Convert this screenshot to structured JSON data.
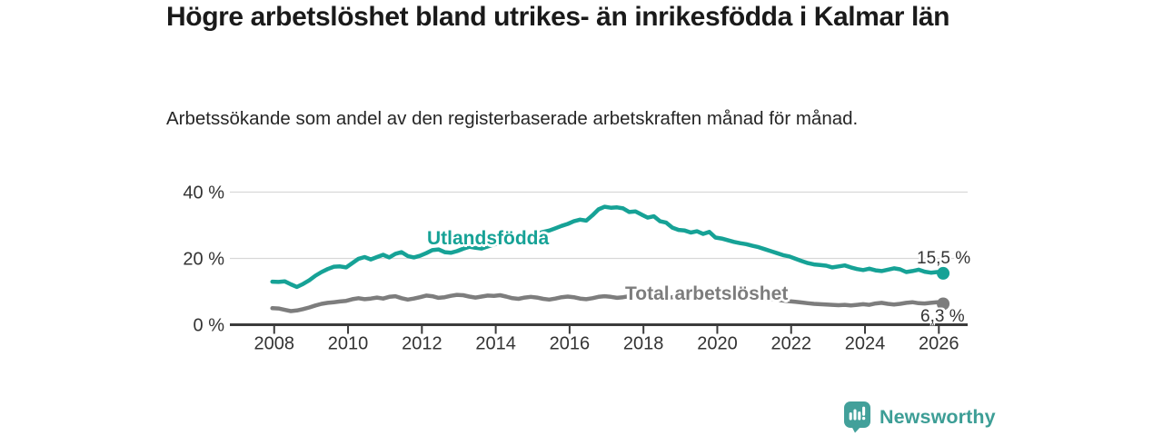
{
  "footer": {
    "brand": "Newsworthy"
  },
  "colors": {
    "teal": "#16a296",
    "gray": "#7d7d7d",
    "grid": "#d8d8d8",
    "axis": "#3b3b3b",
    "tick_text": "#333333",
    "brand": "#3d9e96"
  },
  "chart_data": {
    "type": "line",
    "title": "Högre arbetslöshet bland utrikes- än inrikesfödda i Kalmar län",
    "subtitle": "Arbetssökande som andel av den registerbaserade arbetskraften månad för månad.",
    "xlim": [
      2006.8,
      2026.78
    ],
    "ylim": [
      0,
      40
    ],
    "grid": "horizontal",
    "legend_position": "inline-labels",
    "x_ticks": [
      {
        "v": 2008,
        "label": "2008"
      },
      {
        "v": 2010,
        "label": "2010"
      },
      {
        "v": 2012,
        "label": "2012"
      },
      {
        "v": 2014,
        "label": "2014"
      },
      {
        "v": 2016,
        "label": "2016"
      },
      {
        "v": 2018,
        "label": "2018"
      },
      {
        "v": 2020,
        "label": "2020"
      },
      {
        "v": 2022,
        "label": "2022"
      },
      {
        "v": 2024,
        "label": "2024"
      },
      {
        "v": 2026,
        "label": "2026"
      }
    ],
    "y_ticks": [
      {
        "v": 0,
        "label": "0 %"
      },
      {
        "v": 20,
        "label": "20 %"
      },
      {
        "v": 40,
        "label": "40 %"
      }
    ],
    "series": [
      {
        "name": "Utlandsfödda",
        "color_key": "teal",
        "end_label": "15,5 %",
        "end_value": 15.5,
        "start": 2007.95,
        "step": 0.16667,
        "values": [
          13.0,
          12.9,
          13.1,
          12.2,
          11.4,
          12.3,
          13.4,
          14.8,
          15.9,
          16.8,
          17.5,
          17.6,
          17.3,
          18.6,
          19.9,
          20.4,
          19.7,
          20.4,
          21.1,
          20.3,
          21.4,
          21.9,
          20.7,
          20.3,
          20.8,
          21.6,
          22.5,
          22.7,
          21.9,
          21.7,
          22.2,
          22.9,
          23.5,
          23.2,
          23.0,
          23.6,
          24.2,
          24.8,
          25.4,
          25.1,
          25.6,
          26.2,
          26.8,
          27.4,
          28.0,
          28.4,
          29.1,
          29.8,
          30.4,
          31.2,
          31.7,
          31.4,
          33.0,
          34.8,
          35.6,
          35.3,
          35.4,
          35.1,
          34.0,
          34.2,
          33.2,
          32.3,
          32.7,
          31.2,
          30.8,
          29.3,
          28.6,
          28.4,
          27.8,
          28.2,
          27.4,
          28.0,
          26.3,
          26.0,
          25.5,
          25.0,
          24.6,
          24.3,
          23.8,
          23.4,
          22.8,
          22.2,
          21.6,
          21.0,
          20.6,
          19.9,
          19.2,
          18.6,
          18.2,
          18.0,
          17.8,
          17.3,
          17.6,
          17.9,
          17.3,
          16.8,
          16.5,
          16.9,
          16.4,
          16.2,
          16.6,
          17.0,
          16.7,
          15.9,
          16.2,
          16.6,
          16.0,
          15.7,
          15.9,
          15.5
        ]
      },
      {
        "name": "Total arbetslöshet",
        "color_key": "gray",
        "end_label": "6,3 %",
        "end_value": 6.3,
        "start": 2007.95,
        "step": 0.16667,
        "values": [
          5.0,
          4.9,
          4.5,
          4.1,
          4.3,
          4.7,
          5.2,
          5.8,
          6.3,
          6.6,
          6.8,
          7.0,
          7.2,
          7.7,
          8.0,
          7.7,
          7.9,
          8.2,
          7.9,
          8.4,
          8.6,
          8.0,
          7.6,
          7.9,
          8.3,
          8.8,
          8.6,
          8.1,
          8.3,
          8.7,
          9.0,
          8.9,
          8.5,
          8.2,
          8.5,
          8.8,
          8.7,
          8.9,
          8.5,
          8.0,
          7.8,
          8.2,
          8.4,
          8.2,
          7.8,
          7.6,
          7.9,
          8.3,
          8.5,
          8.3,
          7.9,
          7.7,
          8.0,
          8.4,
          8.6,
          8.4,
          8.1,
          8.3,
          8.6,
          8.4,
          8.1,
          8.4,
          8.7,
          8.3,
          8.0,
          8.3,
          8.6,
          8.8,
          8.5,
          8.2,
          8.5,
          8.8,
          8.6,
          9.3,
          9.5,
          9.2,
          9.0,
          8.8,
          8.6,
          8.4,
          8.1,
          7.8,
          7.5,
          7.3,
          7.1,
          6.9,
          6.7,
          6.5,
          6.3,
          6.2,
          6.1,
          6.0,
          5.9,
          6.0,
          5.8,
          6.0,
          6.2,
          6.0,
          6.4,
          6.6,
          6.3,
          6.1,
          6.3,
          6.6,
          6.8,
          6.5,
          6.4,
          6.6,
          6.8,
          6.3
        ]
      }
    ]
  }
}
